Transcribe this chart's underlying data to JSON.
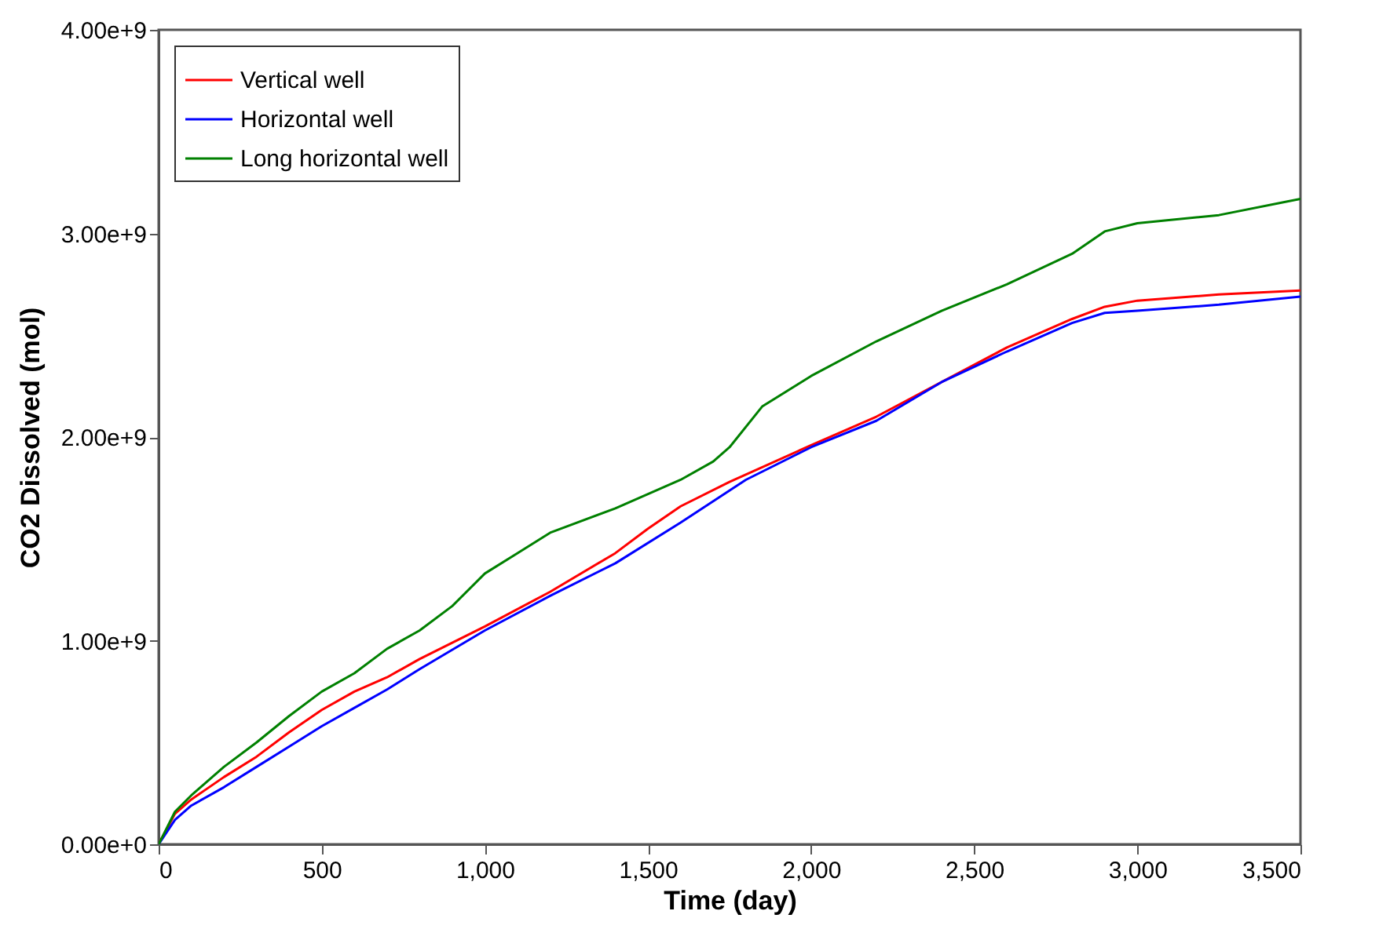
{
  "chart_data": {
    "type": "line",
    "xlabel": "Time (day)",
    "ylabel": "CO2 Dissolved (mol)",
    "legend": "top left",
    "grid": false,
    "marker": "none",
    "line_style": "solid",
    "xlim": [
      0,
      3500
    ],
    "xticks": [
      0,
      500,
      {
        "value": 1000,
        "label": "1,000"
      },
      {
        "value": 1500,
        "label": "1,500"
      },
      {
        "value": 2000,
        "label": "2,000"
      },
      {
        "value": 2500,
        "label": "2,500"
      },
      {
        "value": 3000,
        "label": "3,000"
      },
      {
        "value": 3500,
        "label": "3,500"
      }
    ],
    "ylim": [
      0,
      4000000000
    ],
    "yticks": [
      {
        "value": 0,
        "label": "0.00e+0"
      },
      {
        "value": 1000000000,
        "label": "1.00e+9"
      },
      {
        "value": 2000000000,
        "label": "2.00e+9"
      },
      {
        "value": 3000000000,
        "label": "3.00e+9"
      },
      {
        "value": 4000000000,
        "label": "4.00e+9"
      }
    ],
    "series": [
      {
        "name": "Vertical well",
        "color": "#ff0000",
        "x": [
          0,
          50,
          100,
          200,
          300,
          400,
          500,
          600,
          700,
          800,
          1000,
          1200,
          1400,
          1500,
          1600,
          1750,
          2000,
          2200,
          2400,
          2600,
          2800,
          2900,
          3000,
          3250,
          3500
        ],
        "values": [
          0,
          150000000,
          220000000,
          330000000,
          430000000,
          550000000,
          660000000,
          750000000,
          820000000,
          910000000,
          1070000000,
          1240000000,
          1430000000,
          1550000000,
          1660000000,
          1780000000,
          1960000000,
          2100000000,
          2270000000,
          2440000000,
          2580000000,
          2640000000,
          2670000000,
          2700000000,
          2720000000
        ]
      },
      {
        "name": "Horizontal well",
        "color": "#0000ff",
        "x": [
          0,
          50,
          100,
          200,
          300,
          400,
          500,
          600,
          700,
          800,
          1000,
          1200,
          1400,
          1600,
          1800,
          2000,
          2200,
          2400,
          2600,
          2800,
          2900,
          3000,
          3250,
          3500
        ],
        "values": [
          0,
          120000000,
          190000000,
          280000000,
          380000000,
          480000000,
          580000000,
          670000000,
          760000000,
          860000000,
          1050000000,
          1220000000,
          1380000000,
          1580000000,
          1790000000,
          1950000000,
          2080000000,
          2270000000,
          2420000000,
          2560000000,
          2610000000,
          2620000000,
          2650000000,
          2690000000
        ]
      },
      {
        "name": "Long horizontal well",
        "color": "#008000",
        "x": [
          0,
          50,
          100,
          200,
          300,
          400,
          500,
          600,
          700,
          800,
          900,
          1000,
          1100,
          1200,
          1400,
          1600,
          1700,
          1750,
          1850,
          2000,
          2200,
          2400,
          2600,
          2800,
          2900,
          3000,
          3250,
          3500
        ],
        "values": [
          0,
          160000000,
          240000000,
          380000000,
          500000000,
          630000000,
          750000000,
          840000000,
          960000000,
          1050000000,
          1170000000,
          1330000000,
          1430000000,
          1530000000,
          1650000000,
          1790000000,
          1880000000,
          1950000000,
          2150000000,
          2300000000,
          2470000000,
          2620000000,
          2750000000,
          2900000000,
          3010000000,
          3050000000,
          3090000000,
          3170000000
        ]
      }
    ]
  }
}
